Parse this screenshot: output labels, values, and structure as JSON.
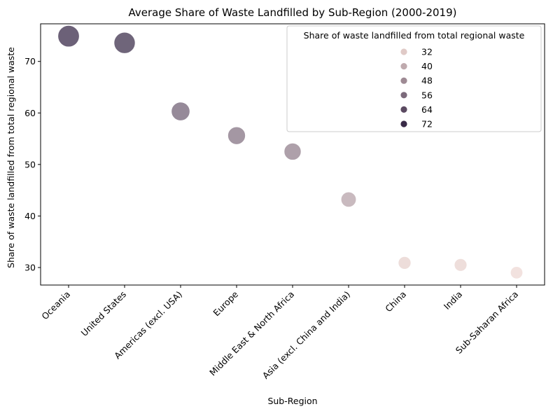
{
  "chart_data": {
    "type": "scatter",
    "title": "Average Share of Waste Landfilled by Sub-Region (2000-2019)",
    "xlabel": "Sub-Region",
    "ylabel": "Share of waste landfilled from total regional waste",
    "categories": [
      "Oceania",
      "United States",
      "Americas (excl. USA)",
      "Europe",
      "Middle East & North Africa",
      "Asia (excl. China and India)",
      "China",
      "India",
      "Sub-Saharan Africa"
    ],
    "values": [
      74.9,
      73.6,
      60.3,
      55.6,
      52.5,
      43.2,
      30.9,
      30.5,
      29.0
    ],
    "ylim": [
      26.6,
      77.3
    ],
    "yticks": [
      30,
      40,
      50,
      60,
      70
    ],
    "legend": {
      "title": "Share of waste landfilled from total regional waste",
      "placement": "top-right",
      "entries": [
        "32",
        "40",
        "48",
        "56",
        "64",
        "72"
      ],
      "values": [
        32,
        40,
        48,
        56,
        64,
        72
      ]
    },
    "hue_range": [
      29.0,
      74.9
    ],
    "color_low": "#edd6d1",
    "color_high": "#2d1e3e",
    "point_alpha": 0.7,
    "grid": false
  }
}
